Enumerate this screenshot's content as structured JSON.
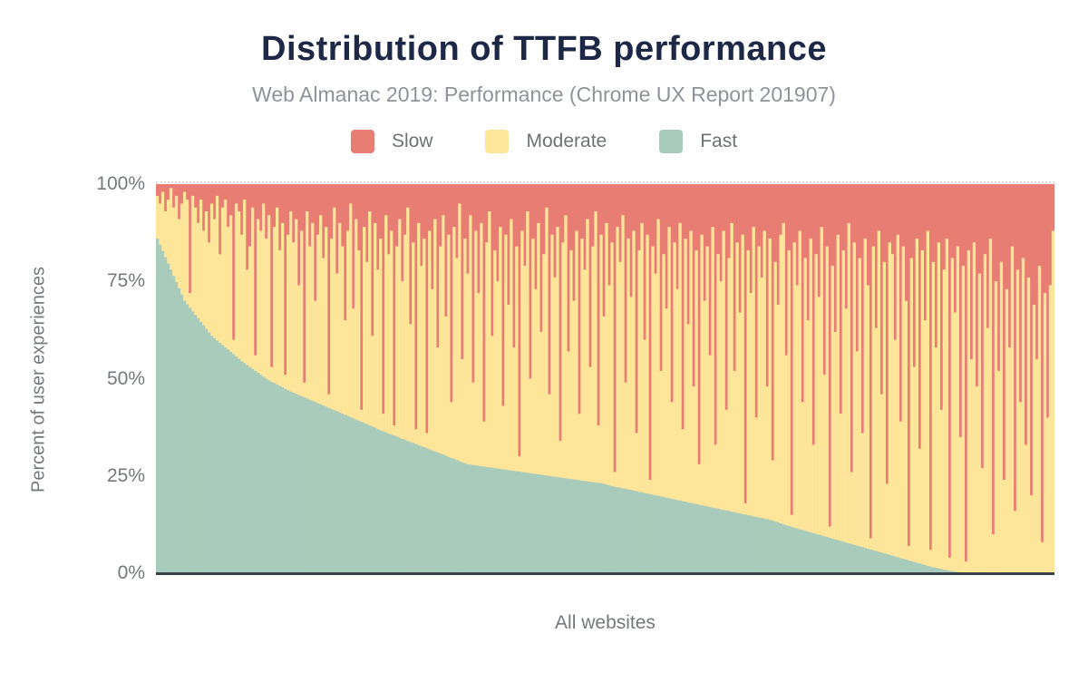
{
  "header": {
    "title": "Distribution of TTFB performance",
    "subtitle": "Web Almanac 2019: Performance (Chrome UX Report 201907)"
  },
  "legend": [
    {
      "label": "Slow",
      "color": "#e87d74"
    },
    {
      "label": "Moderate",
      "color": "#fde59a"
    },
    {
      "label": "Fast",
      "color": "#a8cbbb"
    }
  ],
  "axes": {
    "y_title": "Percent of user experiences",
    "y_ticks": [
      "100%",
      "75%",
      "50%",
      "25%",
      "0%"
    ],
    "x_title": "All websites"
  },
  "chart_data": {
    "type": "bar",
    "stacked": true,
    "title": "Distribution of TTFB performance",
    "subtitle": "Web Almanac 2019: Performance (Chrome UX Report 201907)",
    "xlabel": "All websites",
    "ylabel": "Percent of user experiences",
    "ylim": [
      0,
      100
    ],
    "units": "percent of user experiences",
    "grid": "dotted line at 100% only",
    "legend_position": "top center",
    "categories_note": "330 individual websites, unlabeled, sorted by Fast share descending",
    "n_bars": 330,
    "colors": {
      "slow": "#e87d74",
      "moderate": "#fde59a",
      "fast": "#a8cbbb"
    },
    "series_definition": "Each bar stacks to 100%: Fast (bottom) up to fast_top, Moderate up to moderate_top, Slow fills remainder to 100.",
    "fast_top": [
      86,
      84.4,
      82.8,
      81.2,
      79.6,
      78,
      76.4,
      74.8,
      73.2,
      71.6,
      70,
      69.1,
      68.2,
      67.3,
      66.4,
      65.5,
      64.6,
      63.7,
      62.8,
      61.9,
      61,
      60.4,
      59.8,
      59.2,
      58.6,
      58,
      57.5,
      56.9,
      56.3,
      55.7,
      55.1,
      54.5,
      54,
      53.5,
      53,
      52.5,
      52,
      51.5,
      51,
      50.5,
      50,
      49.6,
      49.2,
      48.9,
      48.5,
      48.1,
      47.8,
      47.4,
      47,
      46.7,
      46.4,
      46.1,
      45.8,
      45.5,
      45.2,
      44.9,
      44.6,
      44.3,
      44,
      43.7,
      43.4,
      43.1,
      42.8,
      42.5,
      42.2,
      41.9,
      41.6,
      41.3,
      41,
      40.7,
      40.4,
      40.1,
      39.8,
      39.5,
      39.2,
      38.9,
      38.6,
      38.3,
      38,
      37.7,
      37.4,
      37,
      36.7,
      36.5,
      36.2,
      35.9,
      35.6,
      35.4,
      35.1,
      34.8,
      34.5,
      34.3,
      34,
      33.7,
      33.5,
      33.2,
      32.9,
      32.6,
      32.4,
      32.1,
      31.8,
      31.5,
      31.3,
      31,
      30.7,
      30.5,
      30.2,
      29.9,
      29.6,
      29.4,
      29.1,
      28.8,
      28.5,
      28.3,
      28,
      27.9,
      27.8,
      27.7,
      27.6,
      27.5,
      27.4,
      27.3,
      27.2,
      27.1,
      27,
      26.9,
      26.8,
      26.7,
      26.6,
      26.5,
      26.4,
      26.3,
      26.2,
      26.1,
      26,
      25.9,
      25.8,
      25.7,
      25.6,
      25.5,
      25.4,
      25.3,
      25.2,
      25.1,
      25,
      24.9,
      24.8,
      24.7,
      24.6,
      24.5,
      24.4,
      24.3,
      24.2,
      24.1,
      24,
      23.9,
      23.8,
      23.7,
      23.6,
      23.5,
      23.4,
      23.3,
      23.2,
      23.1,
      23,
      22.8,
      22.6,
      22.4,
      22.2,
      22.1,
      22,
      21.8,
      21.7,
      21.5,
      21.4,
      21.2,
      21.1,
      20.9,
      20.8,
      20.6,
      20.5,
      20.3,
      20.2,
      20,
      19.9,
      19.7,
      19.6,
      19.4,
      19.3,
      19.1,
      19,
      18.8,
      18.7,
      18.5,
      18.4,
      18.2,
      18.1,
      17.9,
      17.8,
      17.6,
      17.5,
      17.3,
      17.2,
      17,
      16.9,
      16.7,
      16.6,
      16.4,
      16.3,
      16.1,
      16,
      15.8,
      15.7,
      15.5,
      15.4,
      15.2,
      15.1,
      14.9,
      14.8,
      14.6,
      14.5,
      14.3,
      14.2,
      14,
      13.9,
      13.7,
      13.5,
      13.3,
      13.1,
      12.8,
      12.5,
      12.3,
      12.1,
      11.9,
      11.7,
      11.5,
      11.3,
      11.1,
      10.9,
      10.7,
      10.5,
      10.3,
      10.1,
      9.9,
      9.7,
      9.5,
      9.3,
      9.1,
      8.9,
      8.7,
      8.5,
      8.3,
      8.1,
      7.9,
      7.7,
      7.5,
      7.3,
      7.1,
      6.9,
      6.7,
      6.5,
      6.3,
      6.1,
      5.9,
      5.7,
      5.5,
      5.3,
      5.1,
      4.9,
      4.7,
      4.5,
      4.3,
      4.1,
      3.9,
      3.7,
      3.5,
      3.3,
      3.1,
      2.9,
      2.7,
      2.5,
      2.3,
      2.1,
      1.9,
      1.7,
      1.5,
      1.4,
      1.2,
      1.1,
      0.9,
      0.8,
      0.6,
      0.5,
      0.4,
      0.3,
      0.2,
      0.1,
      0,
      0,
      0,
      0,
      0,
      0,
      0,
      0,
      0,
      0,
      0,
      0,
      0,
      0,
      0,
      0,
      0,
      0,
      0,
      0,
      0,
      0,
      0,
      0,
      0,
      0,
      0,
      0,
      0,
      0,
      0,
      0,
      0
    ],
    "moderate_top": [
      97,
      95,
      98,
      93,
      96,
      99,
      94,
      97,
      91,
      95,
      98,
      96,
      72,
      97,
      94,
      90,
      96,
      88,
      93,
      85,
      95,
      91,
      97,
      82,
      94,
      96,
      89,
      92,
      60,
      95,
      93,
      87,
      96,
      78,
      84,
      94,
      56,
      91,
      88,
      95,
      86,
      92,
      53,
      89,
      94,
      83,
      90,
      51,
      87,
      93,
      85,
      91,
      74,
      88,
      49,
      93,
      84,
      90,
      70,
      87,
      92,
      81,
      89,
      46,
      86,
      94,
      77,
      90,
      84,
      65,
      88,
      95,
      68,
      91,
      83,
      42,
      89,
      80,
      93,
      61,
      90,
      78,
      86,
      41,
      92,
      82,
      88,
      38,
      84,
      91,
      75,
      87,
      94,
      64,
      85,
      37,
      90,
      79,
      86,
      36,
      88,
      73,
      91,
      58,
      84,
      92,
      66,
      87,
      44,
      89,
      81,
      95,
      55,
      86,
      77,
      92,
      49,
      88,
      72,
      90,
      39,
      85,
      93,
      61,
      83,
      75,
      89,
      43,
      87,
      69,
      91,
      58,
      84,
      30,
      88,
      79,
      93,
      50,
      86,
      73,
      90,
      62,
      82,
      94,
      46,
      87,
      76,
      89,
      34,
      85,
      92,
      57,
      83,
      70,
      88,
      41,
      86,
      78,
      91,
      53,
      84,
      93,
      38,
      87,
      66,
      90,
      74,
      85,
      26,
      89,
      80,
      92,
      49,
      86,
      71,
      88,
      36,
      83,
      90,
      60,
      87,
      24,
      84,
      77,
      91,
      52,
      82,
      68,
      89,
      44,
      85,
      73,
      90,
      37,
      86,
      64,
      88,
      48,
      83,
      28,
      87,
      70,
      84,
      56,
      89,
      33,
      82,
      75,
      88,
      42,
      81,
      90,
      52,
      85,
      67,
      87,
      18,
      83,
      72,
      89,
      40,
      84,
      76,
      88,
      48,
      86,
      29,
      80,
      69,
      87,
      90,
      56,
      83,
      15,
      85,
      74,
      88,
      44,
      81,
      65,
      86,
      33,
      82,
      71,
      89,
      51,
      84,
      12,
      79,
      62,
      87,
      41,
      83,
      68,
      90,
      26,
      85,
      57,
      81,
      36,
      86,
      74,
      9,
      84,
      63,
      88,
      46,
      80,
      23,
      85,
      82,
      60,
      87,
      39,
      84,
      70,
      7,
      81,
      53,
      86,
      32,
      83,
      65,
      88,
      6,
      80,
      58,
      85,
      42,
      78,
      86,
      4,
      81,
      67,
      84,
      35,
      79,
      3,
      83,
      55,
      85,
      48,
      77,
      27,
      82,
      63,
      86,
      10,
      75,
      52,
      80,
      24,
      73,
      58,
      84,
      16,
      78,
      44,
      81,
      33,
      76,
      20,
      69,
      55,
      79,
      8,
      72,
      40,
      74,
      88
    ]
  }
}
